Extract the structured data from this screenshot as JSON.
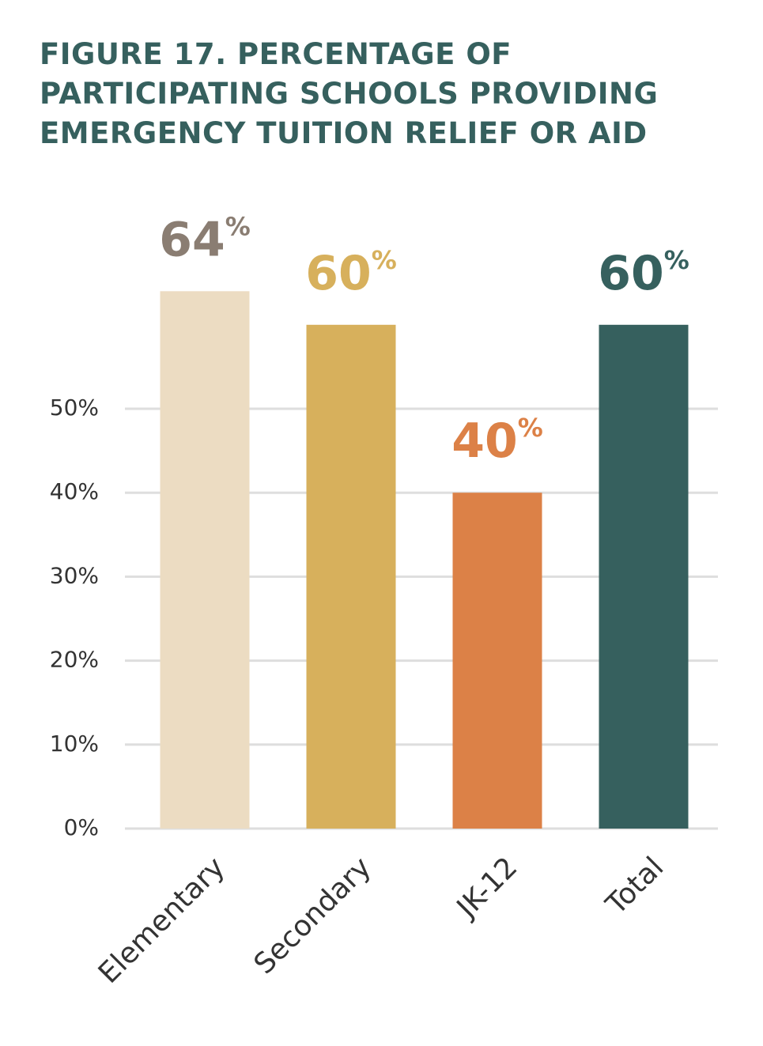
{
  "chart_data": {
    "type": "bar",
    "title": "FIGURE 17. PERCENTAGE OF PARTICIPATING SCHOOLS PROVIDING EMERGENCY TUITION RELIEF OR AID",
    "categories": [
      "Elementary",
      "Secondary",
      "JK-12",
      "Total"
    ],
    "values": [
      64,
      60,
      40,
      60
    ],
    "value_labels": [
      "64%",
      "60%",
      "40%",
      "60%"
    ],
    "colors": [
      "#ecdcc2",
      "#d7b05c",
      "#dc8147",
      "#36605e"
    ],
    "label_colors": [
      "#8a7d72",
      "#d7b05c",
      "#dc8147",
      "#36605e"
    ],
    "ylim": [
      0,
      70
    ],
    "yticks": [
      {
        "value": 0,
        "label": "0%"
      },
      {
        "value": 10,
        "label": "10%"
      },
      {
        "value": 20,
        "label": "20%"
      },
      {
        "value": 30,
        "label": "30%"
      },
      {
        "value": 40,
        "label": "40%"
      },
      {
        "value": 50,
        "label": "50%"
      }
    ],
    "grid": true
  }
}
